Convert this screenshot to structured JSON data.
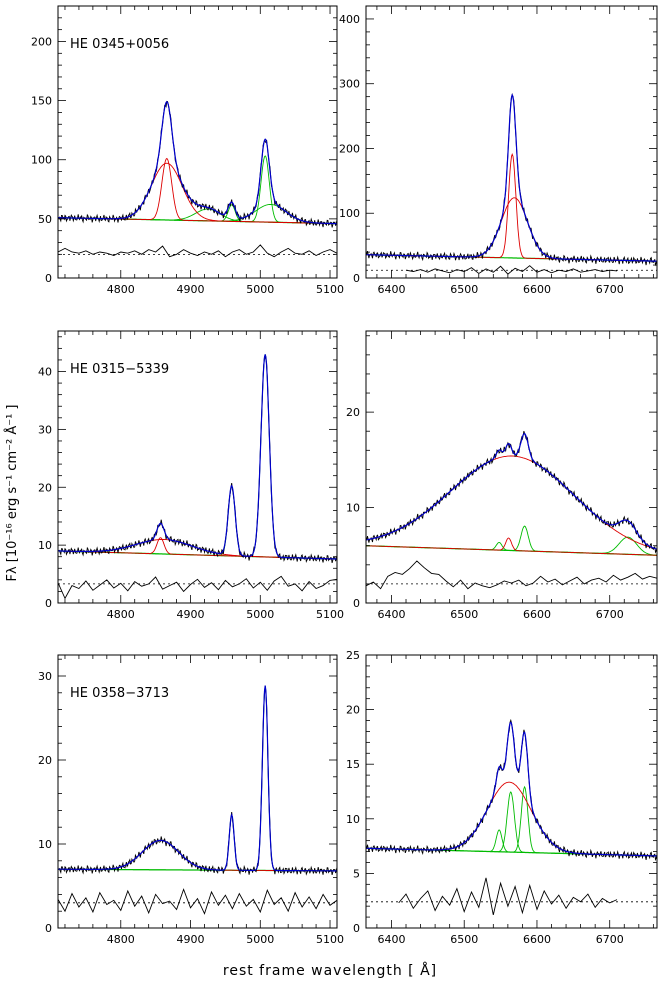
{
  "figure": {
    "ylabel": "Fλ [10⁻¹⁶ erg s⁻¹ cm⁻² Å⁻¹ ]",
    "xlabel": "rest frame wavelength [ Å]",
    "colors": {
      "data": "#000000",
      "total": "#0000cc",
      "broad": "#dd0000",
      "narrow": "#00bb00",
      "continuum": "#00bb00"
    }
  },
  "chart_data": [
    {
      "type": "line",
      "label": "HE 0345+0056",
      "xlim": [
        4710,
        5110
      ],
      "ylim": [
        0,
        230
      ],
      "xticks": [
        4800,
        4900,
        5000,
        5100
      ],
      "yticks": [
        0,
        50,
        100,
        150,
        200
      ],
      "continuum": [
        [
          4710,
          51
        ],
        [
          5110,
          46
        ]
      ],
      "broad": [
        {
          "center": 4866,
          "amp": 48,
          "sigma": 22
        },
        {
          "center": 4866,
          "amp": 52,
          "sigma": 7
        }
      ],
      "narrow": [
        {
          "center": 4925,
          "amp": 10,
          "sigma": 18
        },
        {
          "center": 4959,
          "amp": 14,
          "sigma": 5
        },
        {
          "center": 5007,
          "amp": 56,
          "sigma": 6
        },
        {
          "center": 5015,
          "amp": 15,
          "sigma": 22
        }
      ],
      "residual_level": 20,
      "residual_points": [
        [
          4710,
          22
        ],
        [
          4720,
          25
        ],
        [
          4730,
          22
        ],
        [
          4740,
          21
        ],
        [
          4750,
          23
        ],
        [
          4760,
          20
        ],
        [
          4770,
          22
        ],
        [
          4780,
          21
        ],
        [
          4790,
          19
        ],
        [
          4800,
          22
        ],
        [
          4810,
          21
        ],
        [
          4820,
          23
        ],
        [
          4830,
          20
        ],
        [
          4840,
          24
        ],
        [
          4850,
          22
        ],
        [
          4860,
          27
        ],
        [
          4870,
          18
        ],
        [
          4880,
          20
        ],
        [
          4890,
          24
        ],
        [
          4900,
          21
        ],
        [
          4910,
          19
        ],
        [
          4920,
          22
        ],
        [
          4930,
          20
        ],
        [
          4940,
          23
        ],
        [
          4950,
          18
        ],
        [
          4960,
          22
        ],
        [
          4970,
          24
        ],
        [
          4980,
          20
        ],
        [
          4990,
          22
        ],
        [
          5000,
          28
        ],
        [
          5010,
          21
        ],
        [
          5020,
          18
        ],
        [
          5030,
          22
        ],
        [
          5040,
          25
        ],
        [
          5050,
          21
        ],
        [
          5060,
          20
        ],
        [
          5070,
          23
        ],
        [
          5080,
          19
        ],
        [
          5090,
          22
        ],
        [
          5100,
          24
        ],
        [
          5110,
          21
        ]
      ]
    },
    {
      "type": "line",
      "label": "",
      "xlim": [
        6365,
        6765
      ],
      "ylim": [
        0,
        420
      ],
      "xticks": [
        6400,
        6500,
        6600,
        6700
      ],
      "yticks": [
        0,
        100,
        200,
        300,
        400
      ],
      "continuum": [
        [
          6365,
          36
        ],
        [
          6765,
          26
        ]
      ],
      "broad": [
        {
          "center": 6569,
          "amp": 93,
          "sigma": 18
        },
        {
          "center": 6566,
          "amp": 160,
          "sigma": 5
        }
      ],
      "narrow": [],
      "residual_level": 12,
      "residual_points": [
        [
          6420,
          12
        ],
        [
          6430,
          10
        ],
        [
          6440,
          13
        ],
        [
          6450,
          9
        ],
        [
          6460,
          14
        ],
        [
          6470,
          11
        ],
        [
          6480,
          8
        ],
        [
          6490,
          13
        ],
        [
          6500,
          10
        ],
        [
          6510,
          16
        ],
        [
          6520,
          7
        ],
        [
          6530,
          14
        ],
        [
          6540,
          9
        ],
        [
          6550,
          18
        ],
        [
          6560,
          6
        ],
        [
          6570,
          15
        ],
        [
          6580,
          10
        ],
        [
          6590,
          19
        ],
        [
          6600,
          9
        ],
        [
          6610,
          13
        ],
        [
          6620,
          8
        ],
        [
          6630,
          12
        ],
        [
          6640,
          10
        ],
        [
          6650,
          14
        ],
        [
          6660,
          9
        ],
        [
          6670,
          11
        ],
        [
          6680,
          13
        ],
        [
          6690,
          10
        ],
        [
          6700,
          12
        ],
        [
          6710,
          11
        ]
      ]
    },
    {
      "type": "line",
      "label": "HE 0315−5339",
      "xlim": [
        4710,
        5110
      ],
      "ylim": [
        0,
        47
      ],
      "xticks": [
        4800,
        4900,
        5000,
        5100
      ],
      "yticks": [
        0,
        10,
        20,
        30,
        40
      ],
      "continuum": [
        [
          4710,
          9
        ],
        [
          5110,
          7.6
        ]
      ],
      "broad": [
        {
          "center": 4862,
          "amp": 2.5,
          "sigma": 40
        },
        {
          "center": 4857,
          "amp": 2.8,
          "sigma": 5
        }
      ],
      "narrow": [
        {
          "center": 4959,
          "amp": 12,
          "sigma": 5
        },
        {
          "center": 5007,
          "amp": 35,
          "sigma": 6
        }
      ],
      "residual_level": 3.3,
      "residual_points": [
        [
          4710,
          3.5
        ],
        [
          4720,
          0.8
        ],
        [
          4730,
          3.0
        ],
        [
          4740,
          2.5
        ],
        [
          4750,
          3.8
        ],
        [
          4760,
          2.2
        ],
        [
          4770,
          3.1
        ],
        [
          4780,
          4.0
        ],
        [
          4790,
          2.6
        ],
        [
          4800,
          3.4
        ],
        [
          4810,
          2.1
        ],
        [
          4820,
          3.7
        ],
        [
          4830,
          2.9
        ],
        [
          4840,
          3.3
        ],
        [
          4850,
          4.5
        ],
        [
          4860,
          2.4
        ],
        [
          4870,
          3.0
        ],
        [
          4880,
          3.6
        ],
        [
          4890,
          2.0
        ],
        [
          4900,
          3.2
        ],
        [
          4910,
          4.1
        ],
        [
          4920,
          2.7
        ],
        [
          4930,
          3.5
        ],
        [
          4940,
          2.3
        ],
        [
          4950,
          3.9
        ],
        [
          4960,
          2.8
        ],
        [
          4970,
          3.3
        ],
        [
          4980,
          4.2
        ],
        [
          4990,
          2.6
        ],
        [
          5000,
          3.6
        ],
        [
          5010,
          2.2
        ],
        [
          5020,
          3.8
        ],
        [
          5030,
          4.6
        ],
        [
          5040,
          2.9
        ],
        [
          5050,
          3.3
        ],
        [
          5060,
          2.1
        ],
        [
          5070,
          3.7
        ],
        [
          5080,
          2.5
        ],
        [
          5090,
          3.0
        ],
        [
          5100,
          3.9
        ],
        [
          5110,
          4.1
        ]
      ]
    },
    {
      "type": "line",
      "label": "",
      "xlim": [
        6365,
        6765
      ],
      "ylim": [
        0,
        28.5
      ],
      "xticks": [
        6400,
        6500,
        6600,
        6700
      ],
      "yticks": [
        0,
        10,
        20
      ],
      "continuum": [
        [
          6365,
          6.0
        ],
        [
          6765,
          5.0
        ]
      ],
      "broad": [
        {
          "center": 6566,
          "amp": 9.9,
          "sigma": 85
        },
        {
          "center": 6561,
          "amp": 1.3,
          "sigma": 4
        }
      ],
      "narrow": [
        {
          "center": 6548,
          "amp": 0.8,
          "sigma": 4
        },
        {
          "center": 6583,
          "amp": 2.6,
          "sigma": 5
        },
        {
          "center": 6725,
          "amp": 1.8,
          "sigma": 12
        }
      ],
      "residual_level": 2.0,
      "residual_points": [
        [
          6365,
          1.8
        ],
        [
          6375,
          2.2
        ],
        [
          6385,
          1.5
        ],
        [
          6395,
          2.8
        ],
        [
          6405,
          3.2
        ],
        [
          6415,
          3.0
        ],
        [
          6425,
          3.6
        ],
        [
          6435,
          4.4
        ],
        [
          6445,
          3.7
        ],
        [
          6455,
          3.1
        ],
        [
          6465,
          3.0
        ],
        [
          6475,
          2.3
        ],
        [
          6485,
          1.7
        ],
        [
          6495,
          2.4
        ],
        [
          6505,
          1.5
        ],
        [
          6515,
          2.1
        ],
        [
          6525,
          1.8
        ],
        [
          6535,
          1.6
        ],
        [
          6545,
          1.9
        ],
        [
          6555,
          2.3
        ],
        [
          6565,
          2.1
        ],
        [
          6575,
          2.4
        ],
        [
          6585,
          1.8
        ],
        [
          6595,
          2.1
        ],
        [
          6605,
          2.8
        ],
        [
          6615,
          2.2
        ],
        [
          6625,
          2.5
        ],
        [
          6635,
          1.9
        ],
        [
          6645,
          2.3
        ],
        [
          6655,
          2.7
        ],
        [
          6665,
          2.0
        ],
        [
          6675,
          2.4
        ],
        [
          6685,
          2.6
        ],
        [
          6695,
          2.2
        ],
        [
          6705,
          2.9
        ],
        [
          6715,
          2.4
        ],
        [
          6725,
          2.7
        ],
        [
          6735,
          3.1
        ],
        [
          6745,
          2.5
        ],
        [
          6755,
          2.8
        ],
        [
          6765,
          2.6
        ]
      ]
    },
    {
      "type": "line",
      "label": "HE 0358−3713",
      "xlim": [
        4710,
        5110
      ],
      "ylim": [
        0,
        32.5
      ],
      "xticks": [
        4800,
        4900,
        5000,
        5100
      ],
      "yticks": [
        0,
        10,
        20,
        30
      ],
      "continuum": [
        [
          4710,
          7.0
        ],
        [
          5110,
          6.8
        ]
      ],
      "broad": [
        {
          "center": 4857,
          "amp": 3.5,
          "sigma": 26
        }
      ],
      "narrow": [
        {
          "center": 4959,
          "amp": 6.6,
          "sigma": 3.5
        },
        {
          "center": 5007,
          "amp": 22,
          "sigma": 4
        }
      ],
      "residual_level": 3.0,
      "residual_points": [
        [
          4710,
          3.4
        ],
        [
          4720,
          2.0
        ],
        [
          4730,
          4.1
        ],
        [
          4740,
          2.5
        ],
        [
          4750,
          3.6
        ],
        [
          4760,
          1.9
        ],
        [
          4770,
          4.2
        ],
        [
          4780,
          2.8
        ],
        [
          4790,
          3.3
        ],
        [
          4800,
          2.1
        ],
        [
          4810,
          4.4
        ],
        [
          4820,
          2.6
        ],
        [
          4830,
          3.8
        ],
        [
          4840,
          1.8
        ],
        [
          4850,
          4.0
        ],
        [
          4860,
          2.9
        ],
        [
          4870,
          3.2
        ],
        [
          4880,
          2.2
        ],
        [
          4890,
          4.6
        ],
        [
          4900,
          2.4
        ],
        [
          4910,
          3.5
        ],
        [
          4920,
          1.7
        ],
        [
          4930,
          4.3
        ],
        [
          4940,
          2.7
        ],
        [
          4950,
          3.9
        ],
        [
          4960,
          2.3
        ],
        [
          4970,
          4.1
        ],
        [
          4980,
          2.6
        ],
        [
          4990,
          3.4
        ],
        [
          5000,
          1.9
        ],
        [
          5010,
          4.5
        ],
        [
          5020,
          2.8
        ],
        [
          5030,
          3.6
        ],
        [
          5040,
          2.0
        ],
        [
          5050,
          4.2
        ],
        [
          5060,
          2.5
        ],
        [
          5070,
          3.7
        ],
        [
          5080,
          2.3
        ],
        [
          5090,
          4.0
        ],
        [
          5100,
          2.7
        ],
        [
          5110,
          3.3
        ]
      ]
    },
    {
      "type": "line",
      "label": "",
      "xlim": [
        6365,
        6765
      ],
      "ylim": [
        0,
        25
      ],
      "xticks": [
        6400,
        6500,
        6600,
        6700
      ],
      "yticks": [
        0,
        5,
        10,
        15,
        20,
        25
      ],
      "continuum": [
        [
          6365,
          7.3
        ],
        [
          6765,
          6.6
        ]
      ],
      "broad": [
        {
          "center": 6562,
          "amp": 6.4,
          "sigma": 30
        }
      ],
      "narrow": [
        {
          "center": 6548,
          "amp": 2.0,
          "sigma": 4
        },
        {
          "center": 6564,
          "amp": 5.5,
          "sigma": 5
        },
        {
          "center": 6583,
          "amp": 6.0,
          "sigma": 4.5
        }
      ],
      "residual_level": 2.4,
      "residual_points": [
        [
          6410,
          2.3
        ],
        [
          6420,
          3.1
        ],
        [
          6430,
          1.8
        ],
        [
          6440,
          2.7
        ],
        [
          6450,
          3.4
        ],
        [
          6460,
          1.6
        ],
        [
          6470,
          2.9
        ],
        [
          6480,
          2.1
        ],
        [
          6490,
          3.6
        ],
        [
          6500,
          1.5
        ],
        [
          6510,
          3.3
        ],
        [
          6520,
          1.9
        ],
        [
          6530,
          4.6
        ],
        [
          6540,
          1.2
        ],
        [
          6550,
          4.1
        ],
        [
          6560,
          2.0
        ],
        [
          6570,
          3.8
        ],
        [
          6580,
          1.4
        ],
        [
          6590,
          3.9
        ],
        [
          6600,
          1.7
        ],
        [
          6610,
          3.4
        ],
        [
          6620,
          2.2
        ],
        [
          6630,
          3.0
        ],
        [
          6640,
          1.8
        ],
        [
          6650,
          2.8
        ],
        [
          6660,
          2.4
        ],
        [
          6670,
          3.1
        ],
        [
          6680,
          1.9
        ],
        [
          6690,
          2.7
        ],
        [
          6700,
          2.3
        ],
        [
          6710,
          2.6
        ]
      ]
    }
  ]
}
